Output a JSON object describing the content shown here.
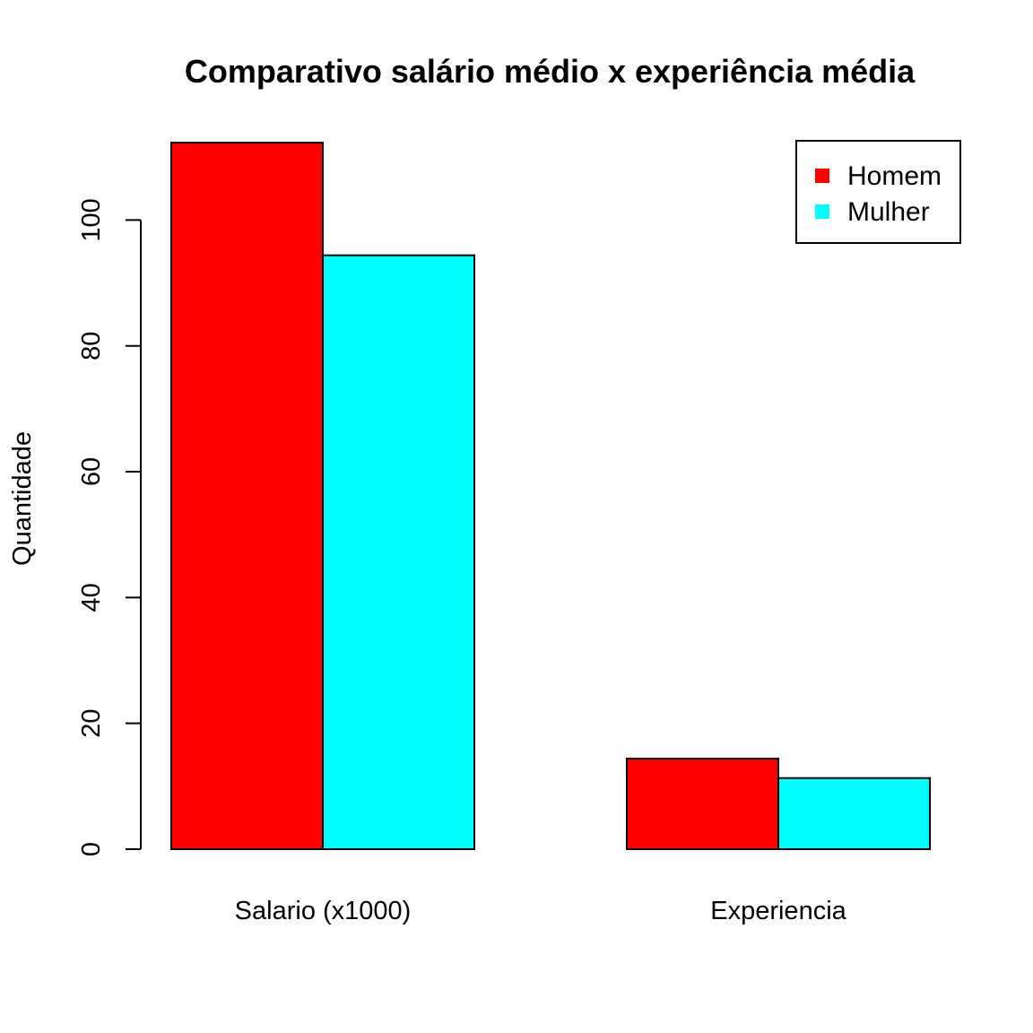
{
  "chart_data": {
    "type": "bar",
    "title": "Comparativo salário médio x experiência média",
    "xlabel": "",
    "ylabel": "Quantidade",
    "categories": [
      "Salario (x1000)",
      "Experiencia"
    ],
    "series": [
      {
        "name": "Homem",
        "color": "#ff0000",
        "values": [
          112.3,
          14.4
        ]
      },
      {
        "name": "Mulher",
        "color": "#00ffff",
        "values": [
          94.4,
          11.3
        ]
      }
    ],
    "yticks": [
      0,
      20,
      40,
      60,
      80,
      100
    ],
    "ylim": [
      0,
      112.3
    ],
    "grid": false,
    "legend_position": "top-right"
  }
}
